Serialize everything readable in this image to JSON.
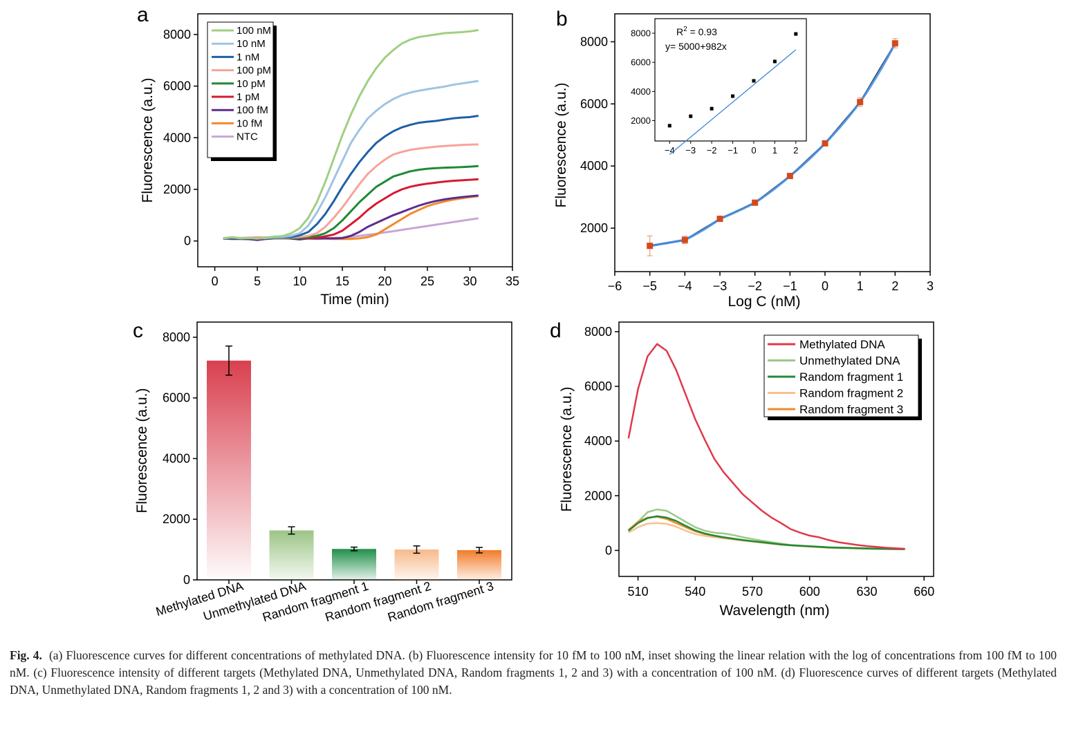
{
  "panels": {
    "a": {
      "label": "a",
      "xlabel": "Time (min)",
      "ylabel": "Fluorescence (a.u.)",
      "xticks": [
        0,
        5,
        10,
        15,
        20,
        25,
        30,
        35
      ],
      "yticks": [
        0,
        2000,
        4000,
        6000,
        8000
      ],
      "legend": [
        "100 nM",
        "10 nM",
        "1 nM",
        "100 pM",
        "10 pM",
        "1 pM",
        "100 fM",
        "10 fM",
        "NTC"
      ]
    },
    "b": {
      "label": "b",
      "xlabel": "Log C (nM)",
      "ylabel": "Fluorescence (a.u.)",
      "xticks": [
        -6,
        -5,
        -4,
        -3,
        -2,
        -1,
        0,
        1,
        2,
        3
      ],
      "yticks": [
        2000,
        4000,
        6000,
        8000
      ],
      "inset": {
        "r2_base": "R",
        "r2_sup": "2",
        "r2_rest": " = 0.93",
        "equation": "y= 5000+982x",
        "xticks": [
          -4,
          -3,
          -2,
          -1,
          0,
          1,
          2
        ],
        "yticks": [
          2000,
          4000,
          6000,
          8000
        ]
      }
    },
    "c": {
      "label": "c",
      "ylabel": "Fluorescence (a.u.)",
      "yticks": [
        0,
        2000,
        4000,
        6000,
        8000
      ],
      "categories": [
        "Methylated DNA",
        "Unmethylated DNA",
        "Random fragment 1",
        "Random fragment 2",
        "Random fragment 3"
      ]
    },
    "d": {
      "label": "d",
      "xlabel": "Wavelength (nm)",
      "ylabel": "Fluorescence (a.u.)",
      "xticks": [
        510,
        540,
        570,
        600,
        630,
        660
      ],
      "yticks": [
        0,
        2000,
        4000,
        6000,
        8000
      ],
      "legend": [
        "Methylated DNA",
        "Unmethylated DNA",
        "Random fragment 1",
        "Random fragment 2",
        "Random fragment 3"
      ]
    }
  },
  "caption": {
    "lead": "Fig. 4.",
    "text": "(a) Fluorescence curves for different concentrations of methylated DNA. (b) Fluorescence intensity for 10 fM to 100 nM, inset showing the linear relation with the log of concentrations from 100 fM to 100 nM. (c) Fluorescence intensity of different targets (Methylated DNA, Unmethylated DNA, Random fragments 1, 2 and 3) with a concentration of 100 nM. (d) Fluorescence curves of different targets (Methylated DNA, Unmethylated DNA, Random fragments 1, 2 and 3) with a concentration of 100 nM."
  },
  "colors": {
    "a": [
      "#9fcf82",
      "#9fc3e3",
      "#1f5fa8",
      "#f7a39a",
      "#1f8a34",
      "#d7192f",
      "#5b2e8e",
      "#f28a2a",
      "#c7a6d6"
    ],
    "b_fit": "#4a90e2",
    "b_points": "#d24a1c",
    "b_inset_line": "#3b86d6",
    "c_bars": [
      "#d9404f",
      "#9cc487",
      "#1f8f4a",
      "#f8b98a",
      "#f27c2a"
    ],
    "d": [
      "#e0394a",
      "#9cc987",
      "#1f8a3a",
      "#f7c18f",
      "#f28a2a"
    ]
  },
  "chart_data": [
    {
      "panel": "a",
      "type": "line",
      "xlim": [
        -2,
        35
      ],
      "ylim": [
        -1000,
        8800
      ],
      "x": [
        1,
        2,
        3,
        4,
        5,
        6,
        7,
        8,
        9,
        10,
        11,
        12,
        13,
        14,
        15,
        16,
        17,
        18,
        19,
        20,
        21,
        22,
        23,
        24,
        25,
        26,
        27,
        28,
        29,
        30,
        31
      ],
      "series": [
        {
          "name": "100 nM",
          "values": [
            100,
            150,
            110,
            120,
            90,
            130,
            170,
            190,
            300,
            500,
            900,
            1500,
            2300,
            3200,
            4100,
            4900,
            5600,
            6200,
            6700,
            7100,
            7400,
            7650,
            7800,
            7900,
            7950,
            8000,
            8050,
            8070,
            8090,
            8120,
            8170
          ]
        },
        {
          "name": "10 nM",
          "values": [
            110,
            140,
            100,
            120,
            100,
            110,
            150,
            160,
            200,
            300,
            600,
            1100,
            1700,
            2400,
            3100,
            3800,
            4300,
            4750,
            5050,
            5300,
            5500,
            5650,
            5750,
            5820,
            5880,
            5930,
            5980,
            6050,
            6100,
            6150,
            6200
          ]
        },
        {
          "name": "1 nM",
          "values": [
            100,
            120,
            100,
            110,
            100,
            110,
            130,
            130,
            150,
            220,
            350,
            650,
            1050,
            1550,
            2100,
            2600,
            3050,
            3450,
            3800,
            4050,
            4250,
            4400,
            4500,
            4580,
            4620,
            4650,
            4700,
            4750,
            4780,
            4800,
            4850
          ]
        },
        {
          "name": "100 pM",
          "values": [
            100,
            110,
            120,
            130,
            150,
            140,
            120,
            110,
            130,
            160,
            200,
            300,
            550,
            900,
            1300,
            1750,
            2200,
            2600,
            2900,
            3150,
            3350,
            3450,
            3530,
            3580,
            3620,
            3650,
            3680,
            3700,
            3720,
            3730,
            3740
          ]
        },
        {
          "name": "10 pM",
          "values": [
            100,
            100,
            110,
            100,
            100,
            110,
            100,
            100,
            110,
            120,
            150,
            200,
            300,
            500,
            800,
            1150,
            1500,
            1800,
            2100,
            2300,
            2500,
            2600,
            2700,
            2760,
            2800,
            2820,
            2840,
            2850,
            2860,
            2880,
            2900
          ]
        },
        {
          "name": "1 pM",
          "values": [
            90,
            100,
            110,
            100,
            90,
            100,
            110,
            100,
            100,
            110,
            110,
            130,
            180,
            250,
            400,
            650,
            900,
            1200,
            1450,
            1650,
            1850,
            2000,
            2100,
            2170,
            2220,
            2260,
            2300,
            2330,
            2350,
            2370,
            2390
          ]
        },
        {
          "name": "100 fM",
          "values": [
            90,
            80,
            80,
            70,
            40,
            80,
            100,
            110,
            90,
            60,
            100,
            90,
            100,
            100,
            110,
            200,
            350,
            550,
            700,
            850,
            1000,
            1120,
            1250,
            1370,
            1470,
            1550,
            1610,
            1660,
            1700,
            1730,
            1760
          ]
        },
        {
          "name": "10 fM",
          "values": [
            100,
            110,
            100,
            100,
            120,
            110,
            100,
            110,
            100,
            100,
            90,
            90,
            90,
            80,
            80,
            80,
            100,
            150,
            250,
            450,
            650,
            850,
            1050,
            1200,
            1350,
            1450,
            1530,
            1600,
            1650,
            1700,
            1740
          ]
        },
        {
          "name": "NTC",
          "values": [
            110,
            100,
            110,
            120,
            110,
            100,
            120,
            110,
            100,
            100,
            110,
            120,
            110,
            120,
            130,
            160,
            200,
            240,
            280,
            330,
            380,
            430,
            480,
            530,
            580,
            630,
            680,
            730,
            780,
            830,
            880
          ]
        }
      ]
    },
    {
      "panel": "b",
      "type": "scatter",
      "xlim": [
        -6,
        3
      ],
      "ylim": [
        600,
        8900
      ],
      "x": [
        -5,
        -4,
        -3,
        -2,
        -1,
        0,
        1,
        2
      ],
      "y": [
        1430,
        1620,
        2300,
        2820,
        3680,
        4730,
        6060,
        7950
      ],
      "yerr": [
        320,
        120,
        60,
        60,
        60,
        80,
        140,
        150
      ],
      "inset": {
        "type": "scatter",
        "xlim": [
          -4.7,
          2.5
        ],
        "ylim": [
          600,
          9000
        ],
        "x": [
          -4,
          -3,
          -2,
          -1,
          0,
          1,
          2
        ],
        "y": [
          1650,
          2300,
          2820,
          3680,
          4730,
          6060,
          7950
        ],
        "fit": {
          "intercept": 5000,
          "slope": 982
        }
      }
    },
    {
      "panel": "c",
      "type": "bar",
      "ylim": [
        0,
        8500
      ],
      "categories": [
        "Methylated DNA",
        "Unmethylated DNA",
        "Random fragment 1",
        "Random fragment 2",
        "Random fragment 3"
      ],
      "values": [
        7230,
        1630,
        1020,
        1000,
        980
      ],
      "errors": [
        480,
        120,
        60,
        120,
        90
      ]
    },
    {
      "panel": "d",
      "type": "line",
      "xlim": [
        500,
        665
      ],
      "ylim": [
        -950,
        8350
      ],
      "x": [
        505,
        510,
        515,
        520,
        525,
        530,
        535,
        540,
        545,
        550,
        555,
        560,
        565,
        570,
        575,
        580,
        585,
        590,
        595,
        600,
        605,
        610,
        615,
        620,
        625,
        630,
        635,
        640,
        645,
        650
      ],
      "series": [
        {
          "name": "Methylated DNA",
          "values": [
            4100,
            5900,
            7100,
            7550,
            7300,
            6600,
            5700,
            4800,
            4050,
            3350,
            2850,
            2450,
            2050,
            1750,
            1450,
            1200,
            1000,
            780,
            650,
            540,
            480,
            380,
            300,
            250,
            200,
            160,
            130,
            100,
            80,
            60
          ]
        },
        {
          "name": "Unmethylated DNA",
          "values": [
            700,
            1050,
            1400,
            1500,
            1450,
            1250,
            1050,
            850,
            720,
            650,
            620,
            560,
            480,
            420,
            360,
            300,
            250,
            200,
            180,
            160,
            140,
            120,
            110,
            100,
            90,
            80,
            70,
            60,
            50,
            40
          ]
        },
        {
          "name": "Random fragment 1",
          "values": [
            720,
            1000,
            1180,
            1250,
            1200,
            1080,
            900,
            730,
            620,
            540,
            480,
            430,
            380,
            340,
            300,
            260,
            220,
            190,
            170,
            150,
            130,
            110,
            100,
            90,
            80,
            70,
            60,
            55,
            50,
            45
          ]
        },
        {
          "name": "Random fragment 2",
          "values": [
            650,
            850,
            980,
            1000,
            970,
            870,
            720,
            600,
            530,
            480,
            440,
            400,
            360,
            320,
            280,
            240,
            210,
            180,
            160,
            140,
            120,
            100,
            90,
            80,
            70,
            60,
            55,
            50,
            45,
            40
          ]
        },
        {
          "name": "Random fragment 3",
          "values": [
            750,
            1050,
            1200,
            1230,
            1150,
            1000,
            850,
            700,
            600,
            530,
            470,
            420,
            380,
            340,
            300,
            260,
            220,
            190,
            170,
            150,
            130,
            110,
            100,
            90,
            80,
            70,
            60,
            55,
            50,
            45
          ]
        }
      ]
    }
  ]
}
